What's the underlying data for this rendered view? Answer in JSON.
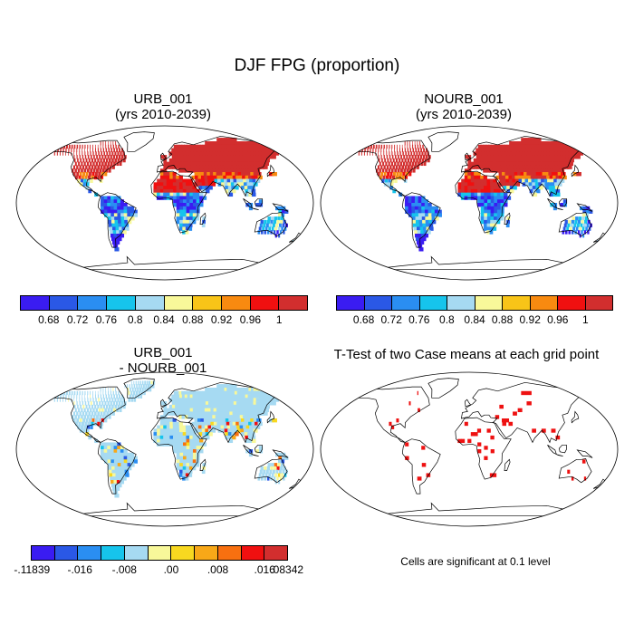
{
  "figure": {
    "title": "DJF FPG (proportion)",
    "note": "Cells are significant at 0.1 level"
  },
  "panels": [
    {
      "id": "urb",
      "title_line1": "URB_001",
      "title_line2": "(yrs 2010-2039)"
    },
    {
      "id": "nourb",
      "title_line1": "NOURB_001",
      "title_line2": "(yrs 2010-2039)"
    },
    {
      "id": "diff",
      "title_line1": "URB_001",
      "title_line2": "- NOURB_001"
    },
    {
      "id": "ttest",
      "title_line1": "T-Test of two Case means at each grid point",
      "title_line2": ""
    }
  ],
  "colorbar_main": {
    "colors": [
      "#3a1cf2",
      "#2a58e6",
      "#2a8ef2",
      "#16c4ec",
      "#a6daf2",
      "#f8f89a",
      "#f8c418",
      "#f88a10",
      "#f01010",
      "#d22e2e"
    ],
    "labels": [
      "0.68",
      "0.72",
      "0.76",
      "0.8",
      "0.84",
      "0.88",
      "0.92",
      "0.96",
      "1"
    ]
  },
  "colorbar_diff": {
    "colors": [
      "#3a1cf2",
      "#2a58e6",
      "#2a8ef2",
      "#16c4ec",
      "#a6daf2",
      "#f8f89a",
      "#f8d820",
      "#f8a818",
      "#f87010",
      "#f01010",
      "#d22e2e"
    ],
    "labels": [
      "-.11839",
      "-.016",
      "-.008",
      ".00",
      ".008",
      ".016",
      ".08342"
    ]
  }
}
